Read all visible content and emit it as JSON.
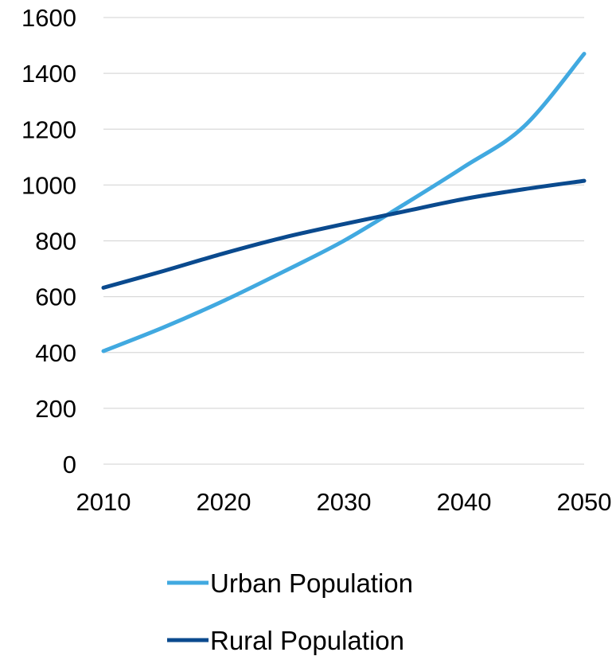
{
  "chart_data": {
    "type": "line",
    "title": "",
    "xlabel": "",
    "ylabel": "",
    "x": [
      2010,
      2015,
      2020,
      2025,
      2030,
      2035,
      2040,
      2045,
      2050
    ],
    "x_ticks": [
      "2010",
      "2020",
      "2030",
      "2040",
      "2050"
    ],
    "y_ticks": [
      "0",
      "200",
      "400",
      "600",
      "800",
      "1000",
      "1200",
      "1400",
      "1600"
    ],
    "ylim": [
      0,
      1600
    ],
    "xlim": [
      2010,
      2050
    ],
    "grid": "horizontal",
    "legend_position": "bottom",
    "series": [
      {
        "name": "Urban Population",
        "color": "#41A9E0",
        "values": [
          405,
          490,
          585,
          690,
          800,
          930,
          1065,
          1210,
          1470
        ]
      },
      {
        "name": "Rural Population",
        "color": "#0A4A8E",
        "values": [
          632,
          692,
          755,
          812,
          860,
          905,
          950,
          985,
          1015
        ]
      }
    ]
  }
}
